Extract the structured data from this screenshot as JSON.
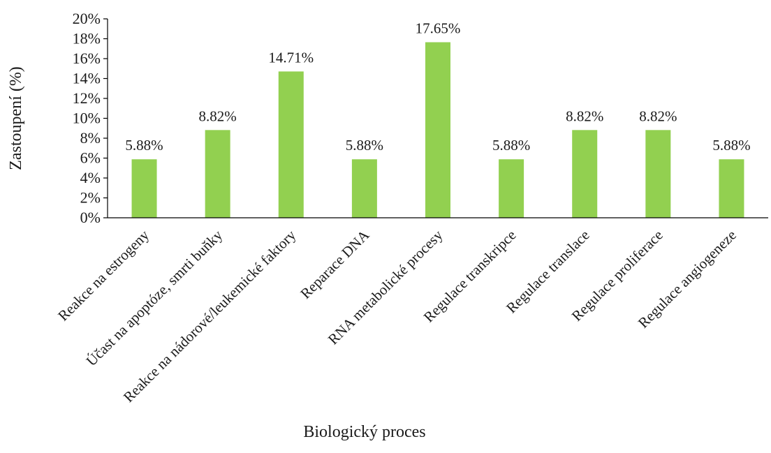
{
  "chart_data": {
    "type": "bar",
    "title": "",
    "xlabel": "Biologický proces",
    "ylabel": "Zastoupení (%)",
    "ylim": [
      0,
      20
    ],
    "ytick_step": 2,
    "ytick_labels": [
      "0%",
      "2%",
      "4%",
      "6%",
      "8%",
      "10%",
      "12%",
      "14%",
      "16%",
      "18%",
      "20%"
    ],
    "categories": [
      "Reakce na estrogeny",
      "Účast na apoptóze, smrti buňky",
      "Reakce na nádorové/leukemické faktory",
      "Reparace DNA",
      "RNA metabolické procesy",
      "Regulace transkripce",
      "Regulace translace",
      "Regulace proliferace",
      "Regulace angiogeneze"
    ],
    "values": [
      5.88,
      8.82,
      14.71,
      5.88,
      17.65,
      5.88,
      8.82,
      8.82,
      5.88
    ],
    "data_labels": [
      "5.88%",
      "8.82%",
      "14.71%",
      "5.88%",
      "17.65%",
      "5.88%",
      "8.82%",
      "8.82%",
      "5.88%"
    ],
    "bar_color": "#92d050",
    "grid": false,
    "legend": "none"
  }
}
